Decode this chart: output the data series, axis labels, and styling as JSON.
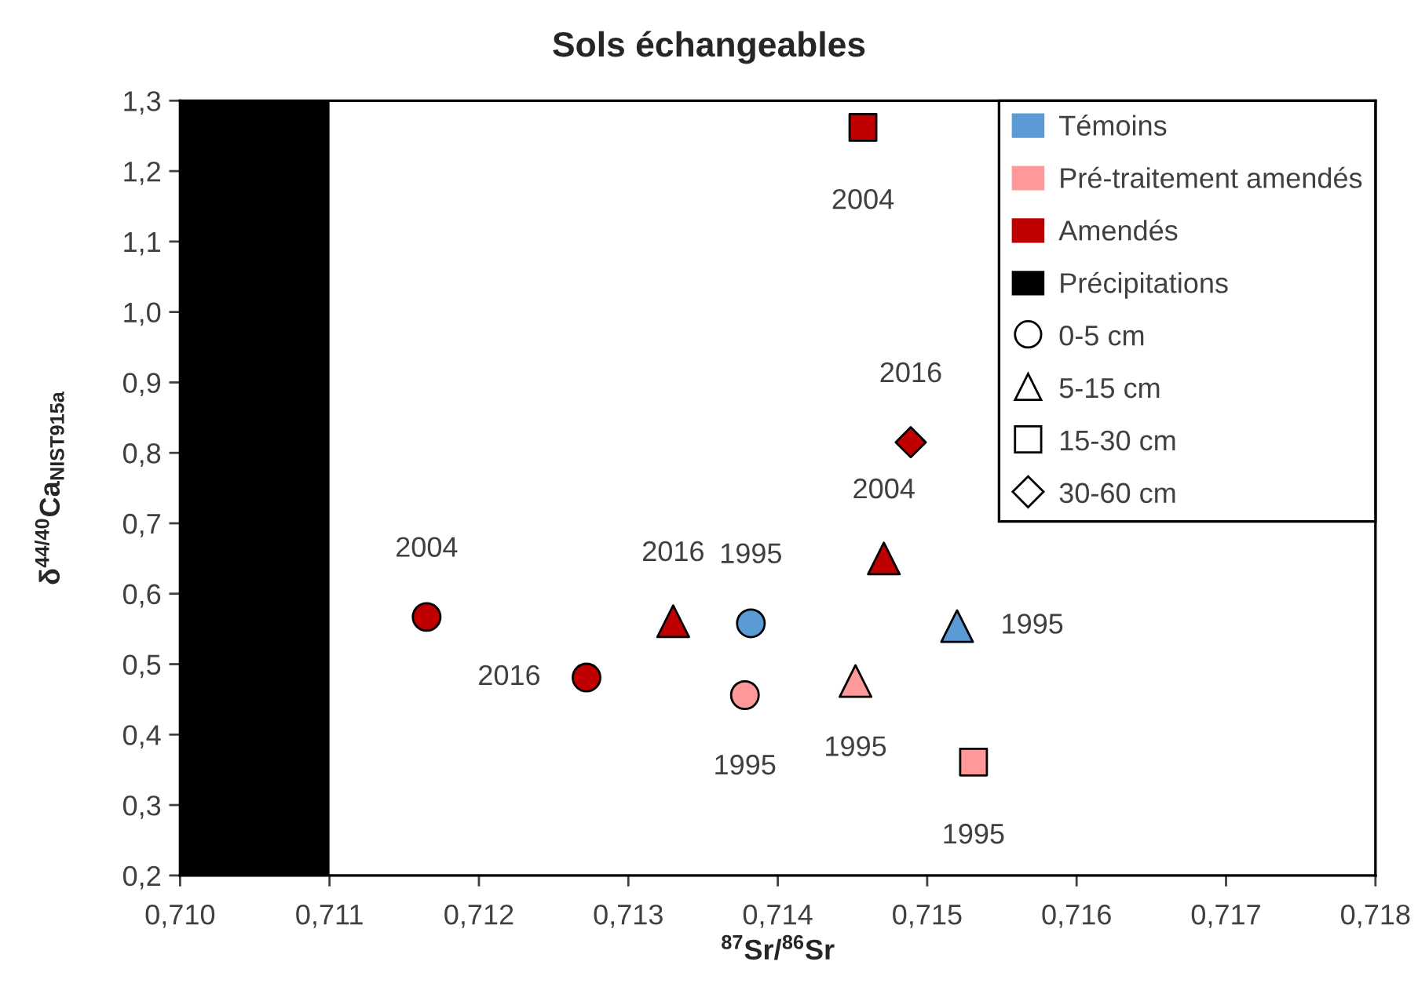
{
  "chart_data": {
    "type": "scatter",
    "title": "Sols échangeables",
    "xlabel": "$^{87}$Sr/$^{86}$Sr",
    "ylabel": "δ$^{44/40}$Ca$_{NIST915a}$",
    "xlim": [
      0.71,
      0.718
    ],
    "xticks": [
      {
        "value": 0.71,
        "label": "0,710"
      },
      {
        "value": 0.711,
        "label": "0,711"
      },
      {
        "value": 0.712,
        "label": "0,712"
      },
      {
        "value": 0.713,
        "label": "0,713"
      },
      {
        "value": 0.714,
        "label": "0,714"
      },
      {
        "value": 0.715,
        "label": "0,715"
      },
      {
        "value": 0.716,
        "label": "0,716"
      },
      {
        "value": 0.717,
        "label": "0,717"
      },
      {
        "value": 0.718,
        "label": "0,718"
      }
    ],
    "ylim": [
      0.2,
      1.3
    ],
    "yticks": [
      {
        "value": 0.2,
        "label": "0,2"
      },
      {
        "value": 0.3,
        "label": "0,3"
      },
      {
        "value": 0.4,
        "label": "0,4"
      },
      {
        "value": 0.5,
        "label": "0,5"
      },
      {
        "value": 0.6,
        "label": "0,6"
      },
      {
        "value": 0.7,
        "label": "0,7"
      },
      {
        "value": 0.8,
        "label": "0,8"
      },
      {
        "value": 0.9,
        "label": "0,9"
      },
      {
        "value": 1.0,
        "label": "1,0"
      },
      {
        "value": 1.1,
        "label": "1,1"
      },
      {
        "value": 1.2,
        "label": "1,2"
      },
      {
        "value": 1.3,
        "label": "1,3"
      }
    ],
    "legend": "top right",
    "bands": [
      {
        "axis": "x",
        "from": 0.71,
        "to": 0.711,
        "color": "#000000"
      }
    ],
    "annotations": [
      {
        "text": "1995",
        "x": 0.71382,
        "y": 0.558
      },
      {
        "text": "1995",
        "x": 0.7152,
        "y": 0.554
      },
      {
        "text": "1995",
        "x": 0.71378,
        "y": 0.456
      },
      {
        "text": "1995",
        "x": 0.71452,
        "y": 0.476
      },
      {
        "text": "1995",
        "x": 0.71531,
        "y": 0.361
      },
      {
        "text": "2004",
        "x": 0.71165,
        "y": 0.567
      },
      {
        "text": "2016",
        "x": 0.71272,
        "y": 0.481
      },
      {
        "text": "2016",
        "x": 0.7133,
        "y": 0.561
      },
      {
        "text": "2004",
        "x": 0.71471,
        "y": 0.65
      },
      {
        "text": "2004",
        "x": 0.71457,
        "y": 1.262
      },
      {
        "text": "2016",
        "x": 0.71489,
        "y": 0.815
      }
    ],
    "series": [
      {
        "color": "#5b9bd5",
        "marker": "circle",
        "x": [
          0.71382
        ],
        "values": [
          0.558
        ]
      },
      {
        "color": "#5b9bd5",
        "marker": "triangle",
        "x": [
          0.7152
        ],
        "values": [
          0.554
        ]
      },
      {
        "color": "#ff9999",
        "marker": "circle",
        "x": [
          0.71378
        ],
        "values": [
          0.456
        ]
      },
      {
        "color": "#ff9999",
        "marker": "triangle",
        "x": [
          0.71452
        ],
        "values": [
          0.476
        ]
      },
      {
        "color": "#ff9999",
        "marker": "square",
        "x": [
          0.71531
        ],
        "values": [
          0.361
        ]
      },
      {
        "color": "#c00000",
        "marker": "circle",
        "x": [
          0.71165,
          0.71272
        ],
        "values": [
          0.567,
          0.481
        ]
      },
      {
        "color": "#c00000",
        "marker": "triangle",
        "x": [
          0.7133,
          0.71471
        ],
        "values": [
          0.561,
          0.65
        ]
      },
      {
        "color": "#c00000",
        "marker": "square",
        "x": [
          0.71457
        ],
        "values": [
          1.262
        ]
      },
      {
        "color": "#c00000",
        "marker": "diamond",
        "x": [
          0.71489
        ],
        "values": [
          0.815
        ]
      },
      {
        "name": "Témoins",
        "color": "#5b9bd5"
      },
      {
        "name": "Pré-traitement amendés",
        "color": "#ff9999"
      },
      {
        "name": "Amendés",
        "color": "#c00000"
      },
      {
        "name": "Précipitations",
        "color": "#000000"
      },
      {
        "name": "0-5 cm",
        "color": "#ffffff",
        "marker": "circle"
      },
      {
        "name": "5-15 cm",
        "color": "#ffffff",
        "marker": "triangle"
      },
      {
        "name": "15-30 cm",
        "color": "#ffffff",
        "marker": "square"
      },
      {
        "name": "30-60 cm",
        "color": "#ffffff",
        "marker": "diamond"
      }
    ]
  }
}
